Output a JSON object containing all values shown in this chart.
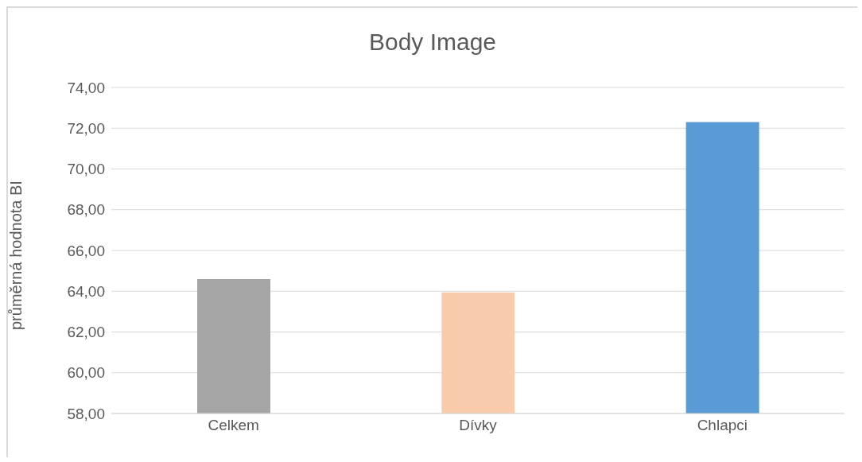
{
  "chart_data": {
    "type": "bar",
    "title": "Body Image",
    "ylabel": "průměrná hodnota BI",
    "categories": [
      "Celkem",
      "Dívky",
      "Chlapci"
    ],
    "values": [
      64.6,
      63.94,
      72.3
    ],
    "colors": [
      "#a5a5a5",
      "#f8cbad",
      "#5b9bd5"
    ],
    "ylim": [
      58,
      74
    ],
    "yticks": [
      {
        "value": 58,
        "label": "58,00"
      },
      {
        "value": 60,
        "label": "60,00"
      },
      {
        "value": 62,
        "label": "62,00"
      },
      {
        "value": 64,
        "label": "64,00"
      },
      {
        "value": 66,
        "label": "66,00"
      },
      {
        "value": 68,
        "label": "68,00"
      },
      {
        "value": 70,
        "label": "70,00"
      },
      {
        "value": 72,
        "label": "72,00"
      },
      {
        "value": 74,
        "label": "74,00"
      }
    ],
    "grid": "y"
  }
}
